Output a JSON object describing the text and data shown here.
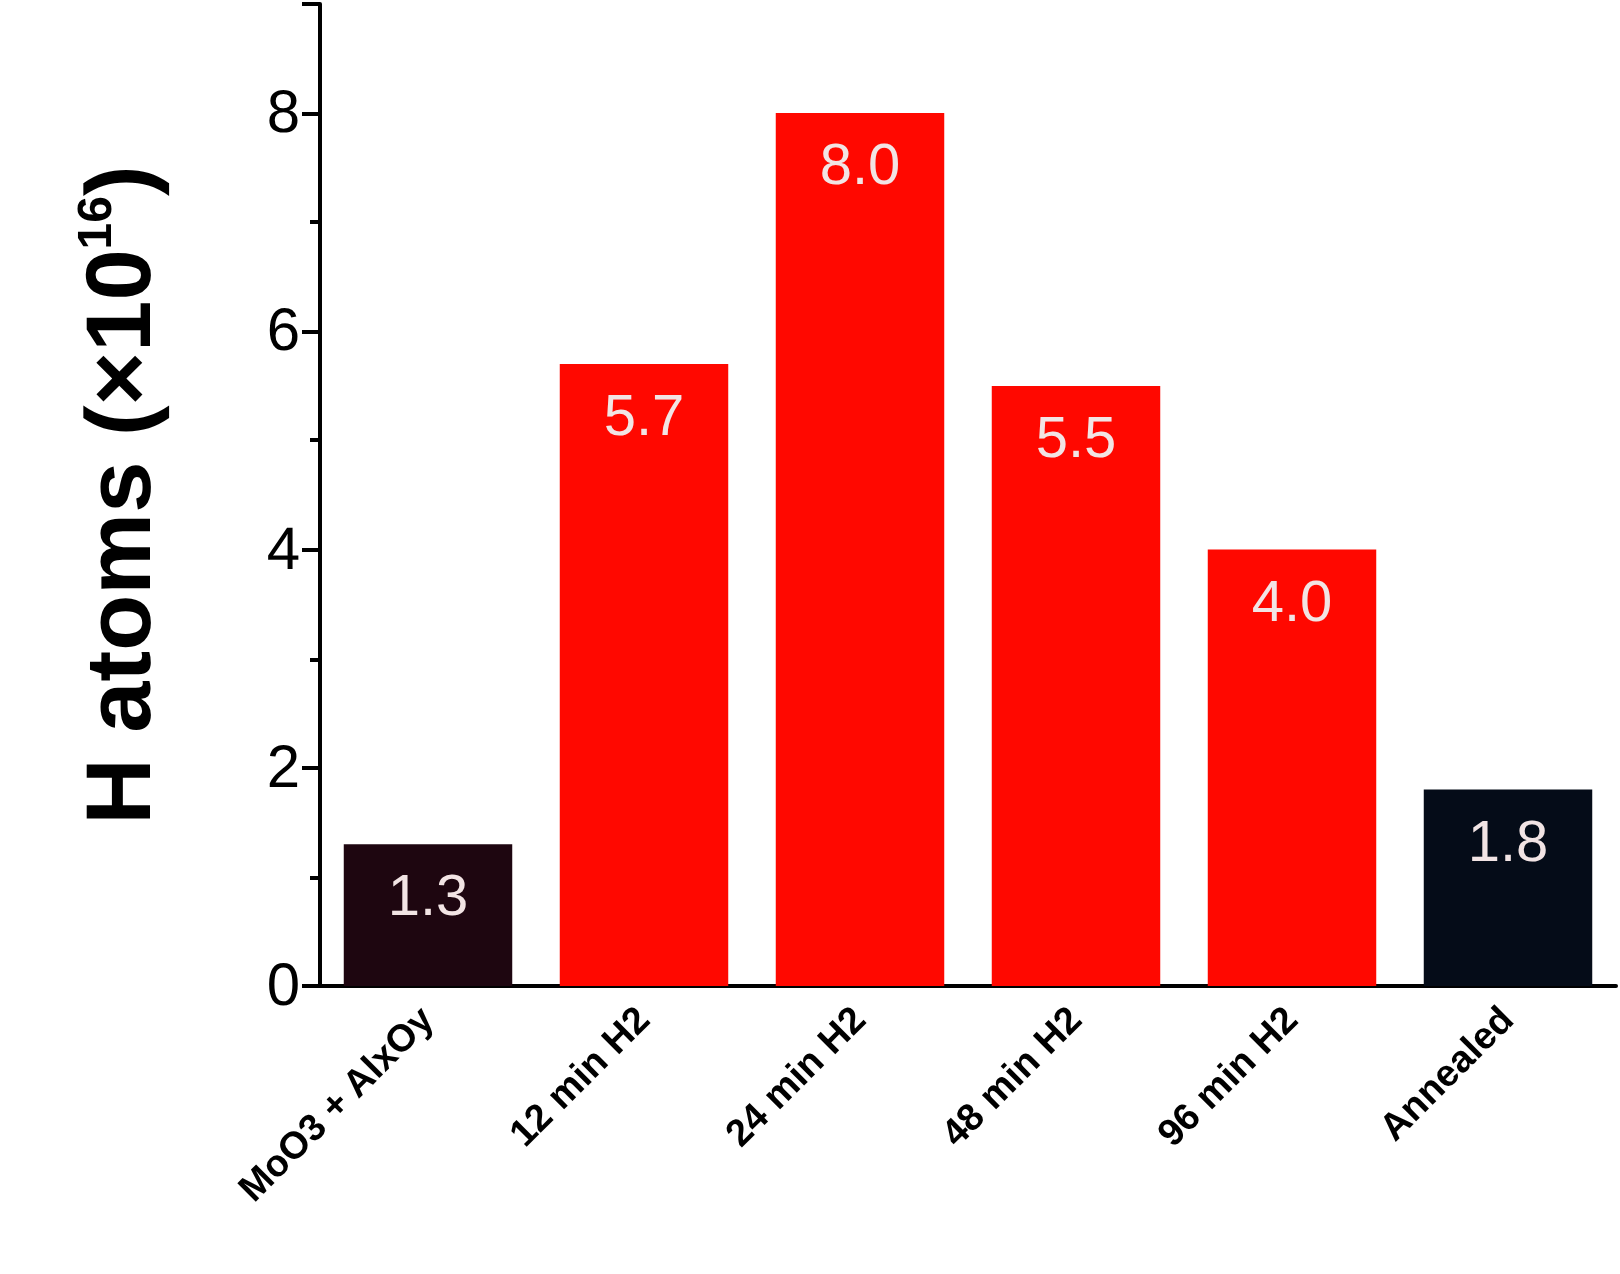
{
  "chart_data": {
    "type": "bar",
    "ylabel": "H atoms (×10$^{16}$)",
    "categories": [
      "MoO3 + AlxOy",
      "12 min H2",
      "24 min H2",
      "48 min H2",
      "96 min H2",
      "Annealed"
    ],
    "values": [
      1.3,
      5.7,
      8.0,
      5.5,
      4.0,
      1.8
    ],
    "colors": [
      "#1e0610",
      "#ff0800",
      "#ff0800",
      "#ff0800",
      "#ff0800",
      "#050c18"
    ],
    "value_labels": [
      "1.3",
      "5.7",
      "8.0",
      "5.5",
      "4.0",
      "1.8"
    ],
    "ylim": [
      0,
      9
    ],
    "yticks": [
      0,
      2,
      4,
      6,
      8
    ],
    "grid": false
  }
}
